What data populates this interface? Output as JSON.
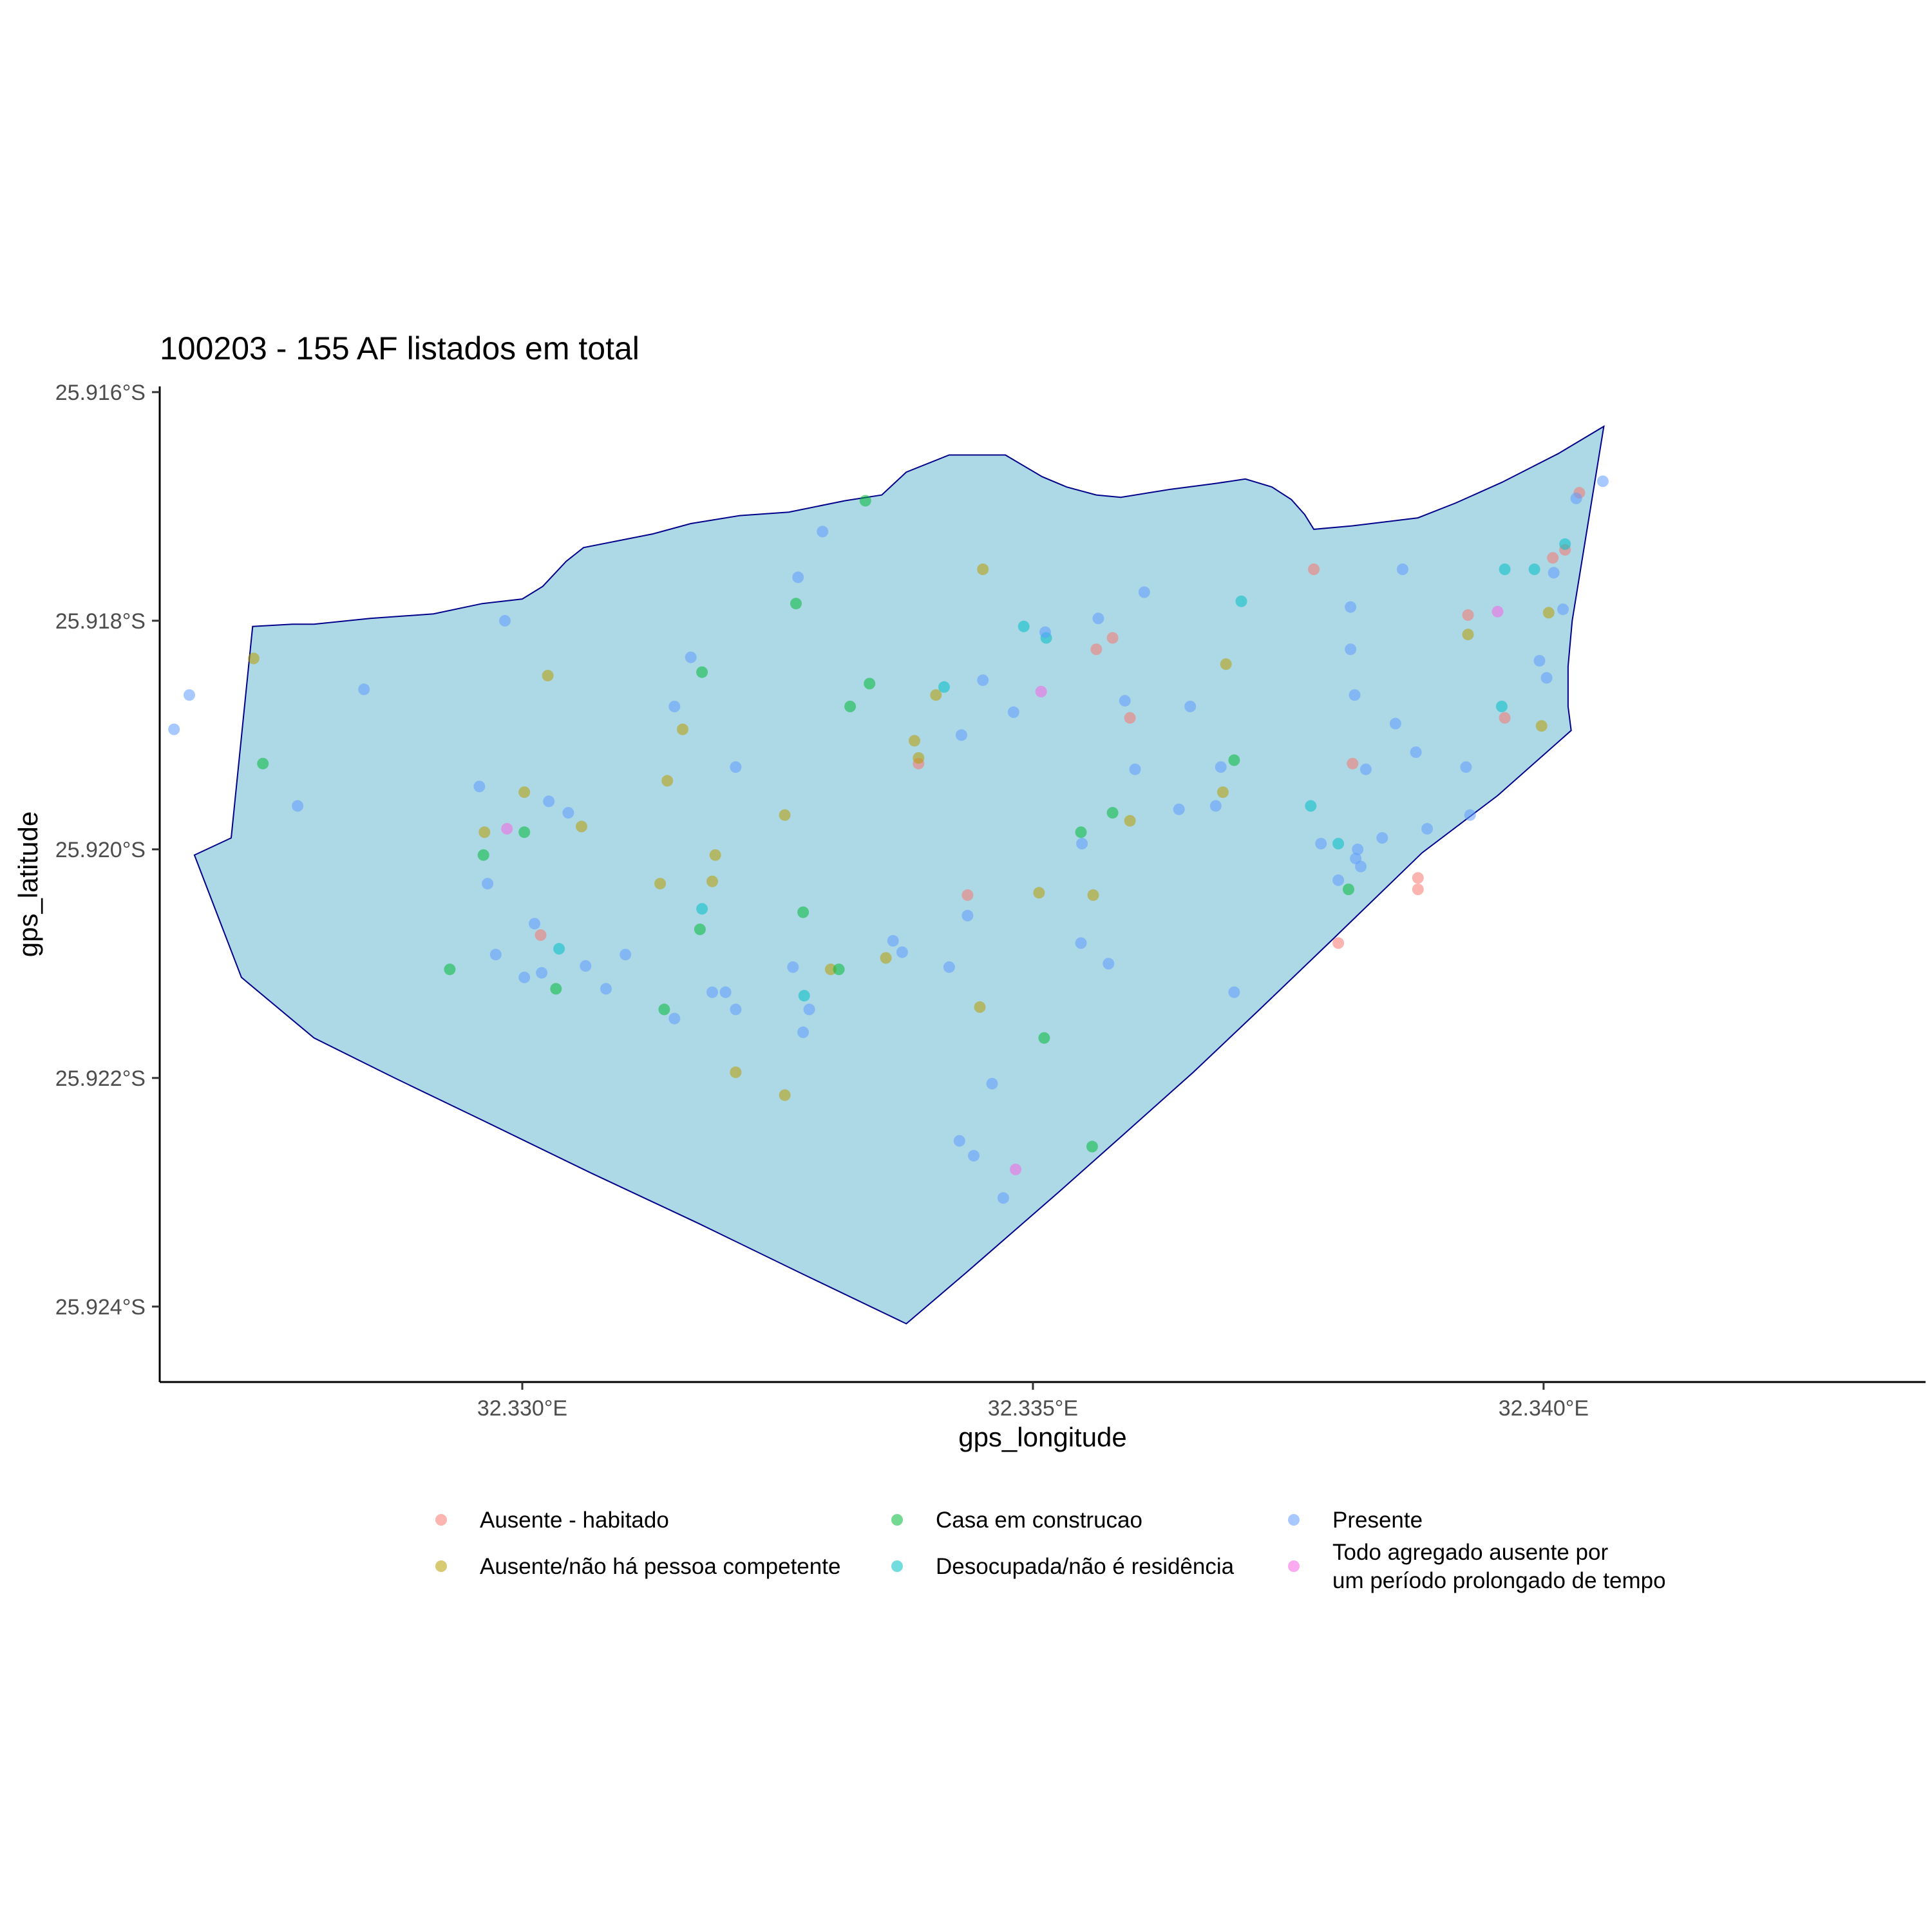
{
  "chart_data": {
    "type": "scatter",
    "title": "100203 - 155 AF listados em total",
    "xlabel": "gps_longitude",
    "ylabel": "gps_latitude",
    "x_ticks": [
      {
        "value": 32.33,
        "label": "32.330°E"
      },
      {
        "value": 32.335,
        "label": "32.335°E"
      },
      {
        "value": 32.34,
        "label": "32.340°E"
      }
    ],
    "y_ticks": [
      {
        "value": -25.916,
        "label": "25.916°S"
      },
      {
        "value": -25.918,
        "label": "25.918°S"
      },
      {
        "value": -25.92,
        "label": "25.920°S"
      },
      {
        "value": -25.922,
        "label": "25.922°S"
      },
      {
        "value": -25.924,
        "label": "25.924°S"
      }
    ],
    "xlim": [
      32.32645,
      32.34374
    ],
    "ylim": [
      -25.92466,
      -25.91595
    ],
    "grid": false,
    "legend_position": "bottom",
    "boundary_fill": "#add8e6",
    "boundary_stroke": "#00008b",
    "boundary": [
      [
        32.32736,
        -25.91805
      ],
      [
        32.32775,
        -25.91803
      ],
      [
        32.32796,
        -25.91803
      ],
      [
        32.32851,
        -25.91798
      ],
      [
        32.32913,
        -25.91794
      ],
      [
        32.32961,
        -25.91785
      ],
      [
        32.33,
        -25.91781
      ],
      [
        32.3302,
        -25.9177
      ],
      [
        32.33043,
        -25.91748
      ],
      [
        32.3306,
        -25.91736
      ],
      [
        32.33128,
        -25.91724
      ],
      [
        32.33165,
        -25.91715
      ],
      [
        32.33213,
        -25.91708
      ],
      [
        32.33261,
        -25.91705
      ],
      [
        32.33316,
        -25.91695
      ],
      [
        32.33352,
        -25.9169
      ],
      [
        32.33376,
        -25.9167
      ],
      [
        32.33418,
        -25.91655
      ],
      [
        32.33473,
        -25.91655
      ],
      [
        32.33509,
        -25.91674
      ],
      [
        32.33533,
        -25.91683
      ],
      [
        32.33562,
        -25.9169
      ],
      [
        32.33586,
        -25.91692
      ],
      [
        32.33635,
        -25.91685
      ],
      [
        32.33678,
        -25.9168
      ],
      [
        32.33708,
        -25.91676
      ],
      [
        32.33734,
        -25.91683
      ],
      [
        32.33753,
        -25.91694
      ],
      [
        32.33766,
        -25.91707
      ],
      [
        32.33775,
        -25.9172
      ],
      [
        32.33813,
        -25.91717
      ],
      [
        32.33877,
        -25.9171
      ],
      [
        32.33914,
        -25.91697
      ],
      [
        32.33959,
        -25.91679
      ],
      [
        32.34014,
        -25.91654
      ],
      [
        32.34059,
        -25.9163
      ],
      [
        32.34028,
        -25.918
      ],
      [
        32.34024,
        -25.9184
      ],
      [
        32.34024,
        -25.91875
      ],
      [
        32.34027,
        -25.91896
      ],
      [
        32.33955,
        -25.91953
      ],
      [
        32.33881,
        -25.92003
      ],
      [
        32.33792,
        -25.9208
      ],
      [
        32.33722,
        -25.9214
      ],
      [
        32.33657,
        -25.92195
      ],
      [
        32.33588,
        -25.9225
      ],
      [
        32.33525,
        -25.923
      ],
      [
        32.33435,
        -25.9237
      ],
      [
        32.33376,
        -25.92415
      ],
      [
        32.33271,
        -25.9237
      ],
      [
        32.33172,
        -25.92327
      ],
      [
        32.33067,
        -25.92283
      ],
      [
        32.32961,
        -25.92237
      ],
      [
        32.32875,
        -25.922
      ],
      [
        32.32796,
        -25.92165
      ],
      [
        32.32725,
        -25.92112
      ],
      [
        32.32679,
        -25.92005
      ],
      [
        32.32715,
        -25.9199
      ],
      [
        32.32736,
        -25.91805
      ]
    ],
    "categories": [
      {
        "name": "Ausente - habitado",
        "color": "#f8766d"
      },
      {
        "name": "Ausente/não há pessoa competente",
        "color": "#b79f00"
      },
      {
        "name": "Casa em construcao",
        "color": "#00ba38"
      },
      {
        "name": "Desocupada/não é residência",
        "color": "#00bfc4"
      },
      {
        "name": "Presente",
        "color": "#619cff"
      },
      {
        "name": "Todo agregado ausente por um período prolongado de tempo",
        "legend_lines": [
          "Todo agregado ausente por",
          "um período prolongado de tempo"
        ],
        "color": "#f564e3"
      }
    ],
    "series": [
      {
        "name": "Ausente - habitado",
        "points": [
          [
            32.33018,
            -25.92075
          ],
          [
            32.33388,
            -25.91925
          ],
          [
            32.33436,
            -25.9204
          ],
          [
            32.33562,
            -25.91825
          ],
          [
            32.33578,
            -25.91815
          ],
          [
            32.33595,
            -25.91885
          ],
          [
            32.33775,
            -25.91755
          ],
          [
            32.33813,
            -25.91925
          ],
          [
            32.33799,
            -25.92082
          ],
          [
            32.33877,
            -25.92025
          ],
          [
            32.33877,
            -25.92035
          ],
          [
            32.33926,
            -25.91795
          ],
          [
            32.33962,
            -25.91885
          ],
          [
            32.34009,
            -25.91745
          ],
          [
            32.34021,
            -25.91738
          ],
          [
            32.34035,
            -25.91688
          ]
        ]
      },
      {
        "name": "Ausente/não há pessoa competente",
        "points": [
          [
            32.32737,
            -25.91833
          ],
          [
            32.32963,
            -25.91985
          ],
          [
            32.33002,
            -25.9195
          ],
          [
            32.33025,
            -25.91848
          ],
          [
            32.33058,
            -25.9198
          ],
          [
            32.33135,
            -25.9203
          ],
          [
            32.33142,
            -25.9194
          ],
          [
            32.33157,
            -25.91895
          ],
          [
            32.33186,
            -25.92028
          ],
          [
            32.33189,
            -25.92005
          ],
          [
            32.33209,
            -25.92195
          ],
          [
            32.33257,
            -25.92215
          ],
          [
            32.33257,
            -25.9197
          ],
          [
            32.33302,
            -25.92105
          ],
          [
            32.33356,
            -25.92095
          ],
          [
            32.33384,
            -25.91905
          ],
          [
            32.33388,
            -25.9192
          ],
          [
            32.33405,
            -25.91865
          ],
          [
            32.33451,
            -25.91755
          ],
          [
            32.33448,
            -25.92138
          ],
          [
            32.33506,
            -25.92038
          ],
          [
            32.33559,
            -25.9204
          ],
          [
            32.33595,
            -25.91975
          ],
          [
            32.33686,
            -25.9195
          ],
          [
            32.33689,
            -25.91838
          ],
          [
            32.33926,
            -25.91812
          ],
          [
            32.34005,
            -25.91793
          ],
          [
            32.33998,
            -25.91892
          ]
        ]
      },
      {
        "name": "Casa em construcao",
        "points": [
          [
            32.32746,
            -25.91925
          ],
          [
            32.32929,
            -25.92105
          ],
          [
            32.32962,
            -25.92005
          ],
          [
            32.33002,
            -25.91985
          ],
          [
            32.33033,
            -25.92122
          ],
          [
            32.33139,
            -25.9214
          ],
          [
            32.33174,
            -25.9207
          ],
          [
            32.33176,
            -25.91845
          ],
          [
            32.33268,
            -25.91785
          ],
          [
            32.33275,
            -25.92055
          ],
          [
            32.3331,
            -25.92105
          ],
          [
            32.33336,
            -25.91695
          ],
          [
            32.3334,
            -25.91855
          ],
          [
            32.33321,
            -25.91875
          ],
          [
            32.33511,
            -25.92165
          ],
          [
            32.33547,
            -25.91985
          ],
          [
            32.33558,
            -25.9226
          ],
          [
            32.33578,
            -25.91968
          ],
          [
            32.33697,
            -25.91922
          ],
          [
            32.33809,
            -25.92035
          ]
        ]
      },
      {
        "name": "Desocupada/não é residência",
        "points": [
          [
            32.33036,
            -25.92087
          ],
          [
            32.33176,
            -25.92052
          ],
          [
            32.33276,
            -25.92128
          ],
          [
            32.33413,
            -25.91858
          ],
          [
            32.33491,
            -25.91805
          ],
          [
            32.33513,
            -25.91815
          ],
          [
            32.33704,
            -25.91783
          ],
          [
            32.33772,
            -25.91962
          ],
          [
            32.33799,
            -25.91995
          ],
          [
            32.33959,
            -25.91875
          ],
          [
            32.33962,
            -25.91755
          ],
          [
            32.33991,
            -25.91755
          ],
          [
            32.34021,
            -25.91733
          ]
        ]
      },
      {
        "name": "Presente",
        "points": [
          [
            32.32659,
            -25.91895
          ],
          [
            32.32674,
            -25.91865
          ],
          [
            32.3278,
            -25.91962
          ],
          [
            32.32845,
            -25.9186
          ],
          [
            32.32958,
            -25.91945
          ],
          [
            32.32966,
            -25.9203
          ],
          [
            32.32974,
            -25.92092
          ],
          [
            32.32983,
            -25.918
          ],
          [
            32.33002,
            -25.92112
          ],
          [
            32.33012,
            -25.92065
          ],
          [
            32.33019,
            -25.92108
          ],
          [
            32.33026,
            -25.91958
          ],
          [
            32.33045,
            -25.91968
          ],
          [
            32.33062,
            -25.92102
          ],
          [
            32.33082,
            -25.92122
          ],
          [
            32.33101,
            -25.92092
          ],
          [
            32.33149,
            -25.92148
          ],
          [
            32.33149,
            -25.91875
          ],
          [
            32.33165,
            -25.91832
          ],
          [
            32.33186,
            -25.92125
          ],
          [
            32.33199,
            -25.92125
          ],
          [
            32.33209,
            -25.9214
          ],
          [
            32.33209,
            -25.91928
          ],
          [
            32.3327,
            -25.91762
          ],
          [
            32.33265,
            -25.92103
          ],
          [
            32.33275,
            -25.9216
          ],
          [
            32.33281,
            -25.9214
          ],
          [
            32.33294,
            -25.91722
          ],
          [
            32.33363,
            -25.9208
          ],
          [
            32.33372,
            -25.9209
          ],
          [
            32.33418,
            -25.92103
          ],
          [
            32.33428,
            -25.92255
          ],
          [
            32.3343,
            -25.919
          ],
          [
            32.33436,
            -25.92058
          ],
          [
            32.33442,
            -25.92268
          ],
          [
            32.33451,
            -25.91852
          ],
          [
            32.3346,
            -25.92205
          ],
          [
            32.33471,
            -25.92305
          ],
          [
            32.33481,
            -25.9188
          ],
          [
            32.33512,
            -25.9181
          ],
          [
            32.33547,
            -25.92082
          ],
          [
            32.33548,
            -25.91995
          ],
          [
            32.33564,
            -25.91798
          ],
          [
            32.33574,
            -25.921
          ],
          [
            32.3359,
            -25.9187
          ],
          [
            32.336,
            -25.9193
          ],
          [
            32.33609,
            -25.91775
          ],
          [
            32.33643,
            -25.91965
          ],
          [
            32.33654,
            -25.91875
          ],
          [
            32.33679,
            -25.91962
          ],
          [
            32.33697,
            -25.92125
          ],
          [
            32.33684,
            -25.91928
          ],
          [
            32.33782,
            -25.91995
          ],
          [
            32.33799,
            -25.92027
          ],
          [
            32.33811,
            -25.91825
          ],
          [
            32.33811,
            -25.91788
          ],
          [
            32.33815,
            -25.91865
          ],
          [
            32.33818,
            -25.92
          ],
          [
            32.33816,
            -25.92008
          ],
          [
            32.33821,
            -25.92015
          ],
          [
            32.33826,
            -25.9193
          ],
          [
            32.33842,
            -25.9199
          ],
          [
            32.33855,
            -25.9189
          ],
          [
            32.33862,
            -25.91755
          ],
          [
            32.33875,
            -25.91915
          ],
          [
            32.33886,
            -25.91982
          ],
          [
            32.33924,
            -25.91928
          ],
          [
            32.33928,
            -25.9197
          ],
          [
            32.33996,
            -25.91835
          ],
          [
            32.34003,
            -25.9185
          ],
          [
            32.3401,
            -25.91758
          ],
          [
            32.34019,
            -25.9179
          ],
          [
            32.34032,
            -25.91693
          ],
          [
            32.34058,
            -25.91678
          ]
        ]
      },
      {
        "name": "Todo agregado ausente por um período prolongado de tempo",
        "points": [
          [
            32.32985,
            -25.91982
          ],
          [
            32.33508,
            -25.91862
          ],
          [
            32.33483,
            -25.9228
          ],
          [
            32.33955,
            -25.91792
          ]
        ]
      }
    ]
  }
}
